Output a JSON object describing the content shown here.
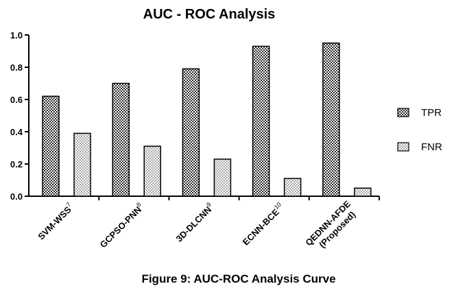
{
  "chart_data": {
    "type": "bar",
    "title": "AUC - ROC Analysis",
    "caption": "Figure 9: AUC-ROC Analysis Curve",
    "categories": [
      {
        "label": "SVM-WSS",
        "superscript": "7"
      },
      {
        "label": "GCPSO-PNN",
        "superscript": "8"
      },
      {
        "label": "3D-DLCNN",
        "superscript": "9"
      },
      {
        "label": "ECNN-BCE",
        "superscript": "10"
      },
      {
        "label": "QEDNN-AFDE",
        "line2": "(Proposed)"
      }
    ],
    "series": [
      {
        "name": "TPR",
        "values": [
          0.62,
          0.7,
          0.79,
          0.93,
          0.95
        ],
        "pattern": "dark-checker"
      },
      {
        "name": "FNR",
        "values": [
          0.39,
          0.31,
          0.23,
          0.11,
          0.05
        ],
        "pattern": "light-checker"
      }
    ],
    "yticks": [
      "0.0",
      "0.2",
      "0.4",
      "0.6",
      "0.8",
      "1.0"
    ],
    "ylim": [
      0,
      1.0
    ],
    "xlabel": "",
    "ylabel": "",
    "legend_position": "right",
    "grid": false,
    "colors": {
      "text": "#000000",
      "axis": "#000000"
    }
  }
}
